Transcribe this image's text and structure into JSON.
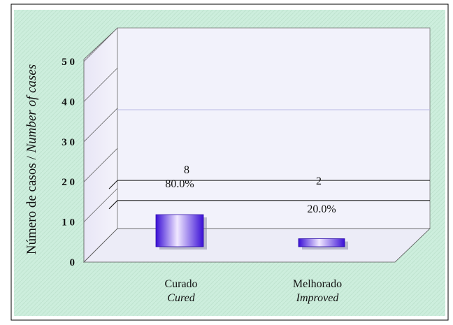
{
  "chart_data": {
    "type": "bar",
    "ylabel_pt": "Número de casos / ",
    "ylabel_en": "Number of cases",
    "yticks": [
      "0",
      "1 0",
      "2 0",
      "3 0",
      "4 0",
      "5 0"
    ],
    "ylim": [
      0,
      50
    ],
    "categories": [
      {
        "label_pt": "Curado",
        "label_en": "Cured"
      },
      {
        "label_pt": "Melhorado",
        "label_en": "Improved"
      }
    ],
    "values": [
      8,
      2
    ],
    "count_labels": [
      "8",
      "2"
    ],
    "percent_labels": [
      "80.0%",
      "20.0%"
    ],
    "reference_levels": [
      12,
      7
    ],
    "grid": false,
    "colors": {
      "background": "#cdeedd",
      "bar_light": "#f0e8ff",
      "bar_dark": "#3a0fd6",
      "wall": "#f0f0fc"
    }
  }
}
